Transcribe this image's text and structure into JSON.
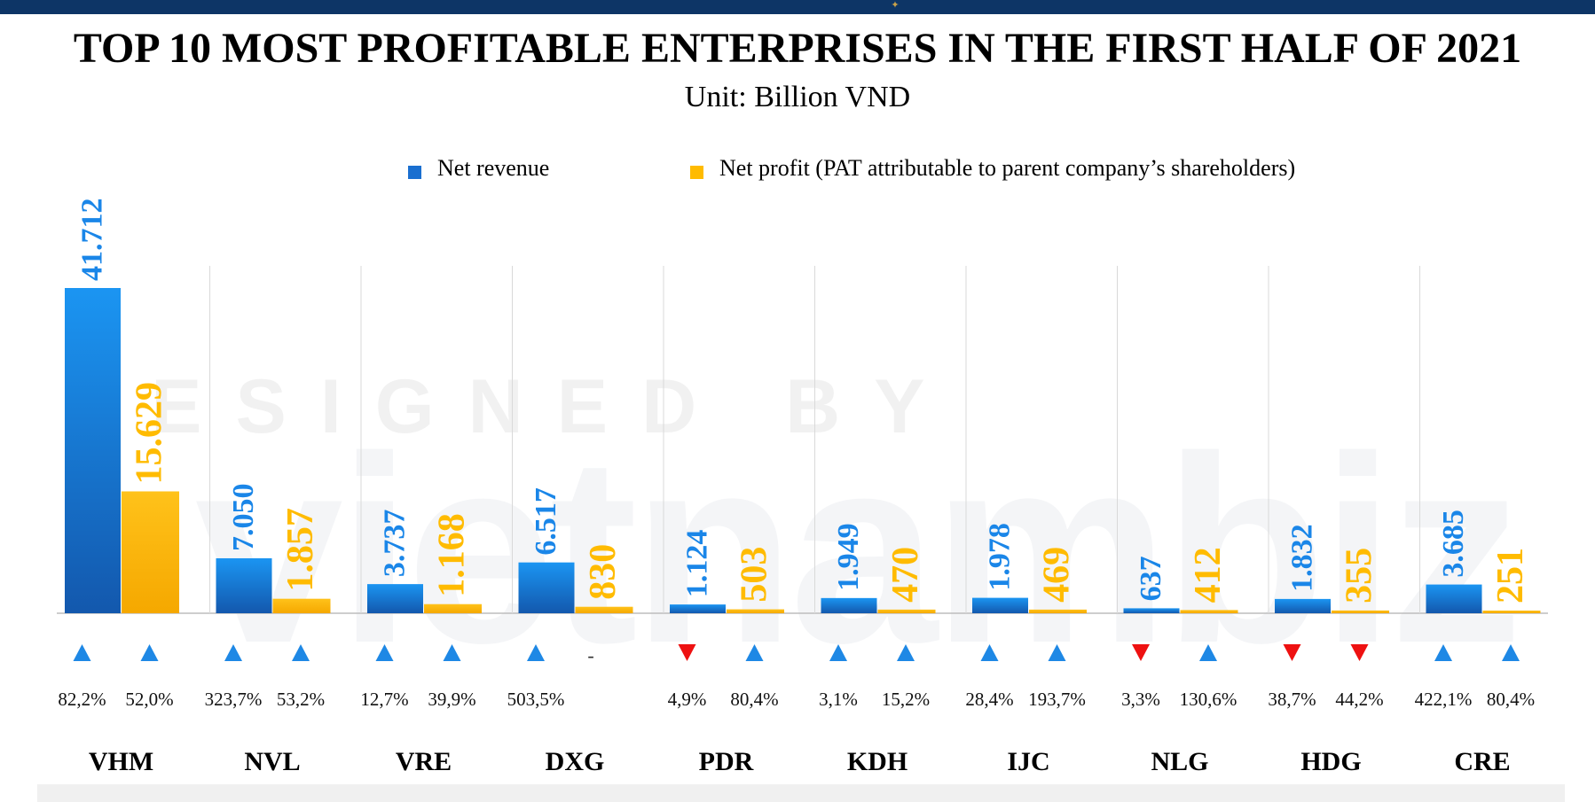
{
  "title": "TOP 10 MOST PROFITABLE ENTERPRISES IN THE FIRST HALF OF 2021",
  "subtitle": "Unit: Billion VND",
  "watermark": {
    "text": "DESIGNED BY",
    "logo": "vietnambiz"
  },
  "colors": {
    "revenue": "#1a86e8",
    "revenue_dark": "#1460b4",
    "profit": "#ffbb00",
    "up": "#1e88e5",
    "down": "#ee1111",
    "header": "#0d3566"
  },
  "chart_data": {
    "type": "bar",
    "title": "TOP 10 MOST PROFITABLE ENTERPRISES IN THE FIRST HALF OF 2021",
    "subtitle": "Unit: Billion VND",
    "categories": [
      "VHM",
      "NVL",
      "VRE",
      "DXG",
      "PDR",
      "KDH",
      "IJC",
      "NLG",
      "HDG",
      "CRE"
    ],
    "series": [
      {
        "name": "Net revenue",
        "values": [
          41712,
          7050,
          3737,
          6517,
          1124,
          1949,
          1978,
          637,
          1832,
          3685
        ],
        "labels": [
          "41.712",
          "7.050",
          "3.737",
          "6.517",
          "1.124",
          "1.949",
          "1.978",
          "637",
          "1.832",
          "3.685"
        ],
        "change_dir": [
          "up",
          "up",
          "up",
          "up",
          "down",
          "up",
          "up",
          "down",
          "down",
          "up"
        ],
        "change": [
          "82,2%",
          "323,7%",
          "12,7%",
          "503,5%",
          "4,9%",
          "3,1%",
          "28,4%",
          "3,3%",
          "38,7%",
          "422,1%"
        ]
      },
      {
        "name": "Net profit (PAT attributable to parent company’s shareholders)",
        "values": [
          15629,
          1857,
          1168,
          830,
          503,
          470,
          469,
          412,
          355,
          251
        ],
        "labels": [
          "15.629",
          "1.857",
          "1.168",
          "830",
          "503",
          "470",
          "469",
          "412",
          "355",
          "251"
        ],
        "change_dir": [
          "up",
          "up",
          "up",
          "none",
          "up",
          "up",
          "up",
          "up",
          "down",
          "up"
        ],
        "change": [
          "52,0%",
          "53,2%",
          "39,9%",
          "",
          "80,4%",
          "15,2%",
          "193,7%",
          "130,6%",
          "44,2%",
          "80,4%"
        ],
        "no_change_mark": "-"
      }
    ],
    "ylim": [
      0,
      41712
    ],
    "legend": "top-center",
    "grid": "vertical-separators"
  }
}
